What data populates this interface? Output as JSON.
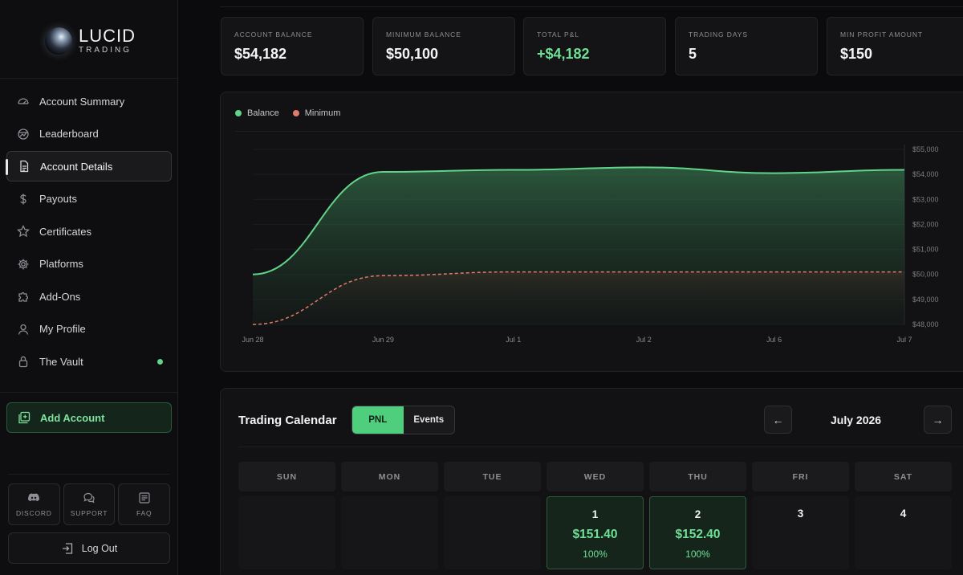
{
  "brand": {
    "name": "LUCID",
    "tagline": "TRADING"
  },
  "sidebar": {
    "items": [
      {
        "label": "Account Summary",
        "icon": "gauge-icon"
      },
      {
        "label": "Leaderboard",
        "icon": "globe-icon"
      },
      {
        "label": "Account Details",
        "icon": "document-icon",
        "active": true
      },
      {
        "label": "Payouts",
        "icon": "dollar-icon"
      },
      {
        "label": "Certificates",
        "icon": "star-icon"
      },
      {
        "label": "Platforms",
        "icon": "gear-icon"
      },
      {
        "label": "Add-Ons",
        "icon": "puzzle-icon"
      },
      {
        "label": "My Profile",
        "icon": "user-icon"
      },
      {
        "label": "The Vault",
        "icon": "lock-icon",
        "status_dot": "#62d48a"
      }
    ],
    "add_account": "Add Account",
    "utilities": [
      {
        "label": "DISCORD",
        "icon": "discord-icon"
      },
      {
        "label": "SUPPORT",
        "icon": "chat-icon"
      },
      {
        "label": "FAQ",
        "icon": "faq-icon"
      }
    ],
    "logout": "Log Out"
  },
  "stats": [
    {
      "label": "ACCOUNT BALANCE",
      "value": "$54,182"
    },
    {
      "label": "MINIMUM BALANCE",
      "value": "$50,100"
    },
    {
      "label": "TOTAL P&L",
      "value": "+$4,182",
      "positive": true
    },
    {
      "label": "TRADING DAYS",
      "value": "5"
    },
    {
      "label": "MIN PROFIT AMOUNT",
      "value": "$150"
    }
  ],
  "chart_data": {
    "type": "area",
    "x": [
      "Jun 28",
      "Jun 29",
      "Jul 1",
      "Jul 2",
      "Jul 6",
      "Jul 7"
    ],
    "series": [
      {
        "name": "Balance",
        "color": "#62d48a",
        "values": [
          50000,
          54100,
          54180,
          54280,
          54050,
          54182
        ]
      },
      {
        "name": "Minimum",
        "color": "#e07a6a",
        "style": "dashed",
        "values": [
          48000,
          49950,
          50100,
          50100,
          50100,
          50100
        ]
      }
    ],
    "y_ticks": [
      "$55,000",
      "$54,000",
      "$53,000",
      "$52,000",
      "$51,000",
      "$50,000",
      "$49,000",
      "$48,000"
    ],
    "ylim": [
      48000,
      55000
    ],
    "legend_placement": "top-left",
    "grid": true
  },
  "calendar": {
    "title": "Trading Calendar",
    "toggle": {
      "pnl": "PNL",
      "events": "Events",
      "selected": "PNL"
    },
    "month": "July 2026",
    "prev": "←",
    "next": "→",
    "weekdays": [
      "SUN",
      "MON",
      "TUE",
      "WED",
      "THU",
      "FRI",
      "SAT"
    ],
    "days": [
      {
        "num": "",
        "pnl": "",
        "pct": ""
      },
      {
        "num": "",
        "pnl": "",
        "pct": ""
      },
      {
        "num": "",
        "pnl": "",
        "pct": ""
      },
      {
        "num": "1",
        "pnl": "$151.40",
        "pct": "100%"
      },
      {
        "num": "2",
        "pnl": "$152.40",
        "pct": "100%"
      },
      {
        "num": "3",
        "pnl": "",
        "pct": ""
      },
      {
        "num": "4",
        "pnl": "",
        "pct": ""
      }
    ]
  }
}
